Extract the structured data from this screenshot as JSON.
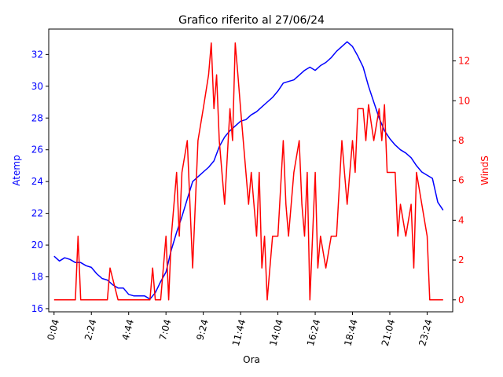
{
  "chart_data": {
    "type": "line",
    "title": "Grafico riferito al 27/06/24",
    "xlabel": "Ora",
    "ylabel_left": "Atemp",
    "ylabel_right": "WindS",
    "x_ticks": [
      "0:04",
      "2:24",
      "4:44",
      "7:04",
      "9:24",
      "11:44",
      "14:04",
      "16:24",
      "18:44",
      "21:04",
      "23:24"
    ],
    "x_range_minutes": [
      -16,
      1500
    ],
    "y_left_ticks": [
      16,
      18,
      20,
      22,
      24,
      26,
      28,
      30,
      32
    ],
    "y_left_range": [
      15.8,
      33.6
    ],
    "y_right_ticks": [
      0,
      2,
      4,
      6,
      8,
      10,
      12
    ],
    "y_right_range": [
      -0.6,
      13.6
    ],
    "grid": false,
    "colors": {
      "atemp": "#0000ff",
      "winds": "#ff0000",
      "left_axis": "#0000ff",
      "right_axis": "#ff0000"
    },
    "series": [
      {
        "name": "Atemp",
        "axis": "left",
        "x": [
          "0:04",
          "0:24",
          "0:44",
          "1:04",
          "1:24",
          "1:44",
          "2:04",
          "2:24",
          "2:44",
          "3:04",
          "3:24",
          "3:44",
          "4:04",
          "4:24",
          "4:44",
          "5:04",
          "5:24",
          "5:44",
          "6:04",
          "6:24",
          "6:44",
          "7:04",
          "7:24",
          "7:44",
          "8:04",
          "8:24",
          "8:44",
          "9:04",
          "9:24",
          "9:44",
          "10:04",
          "10:24",
          "10:44",
          "11:04",
          "11:24",
          "11:44",
          "12:04",
          "12:24",
          "12:44",
          "13:04",
          "13:24",
          "13:44",
          "14:04",
          "14:24",
          "14:44",
          "15:04",
          "15:24",
          "15:44",
          "16:04",
          "16:24",
          "16:44",
          "17:04",
          "17:24",
          "17:44",
          "18:04",
          "18:24",
          "18:44",
          "19:04",
          "19:24",
          "19:44",
          "20:04",
          "20:24",
          "20:44",
          "21:04",
          "21:24",
          "21:44",
          "22:04",
          "22:24",
          "22:44",
          "23:04",
          "23:24",
          "23:44",
          "24:04",
          "24:24"
        ],
        "values": [
          19.3,
          19.0,
          19.2,
          19.1,
          18.9,
          18.9,
          18.7,
          18.6,
          18.2,
          17.9,
          17.8,
          17.5,
          17.3,
          17.3,
          16.9,
          16.8,
          16.8,
          16.8,
          16.6,
          17.0,
          17.7,
          18.3,
          19.7,
          20.8,
          21.8,
          22.9,
          24.0,
          24.3,
          24.6,
          24.9,
          25.3,
          26.2,
          26.8,
          27.2,
          27.5,
          27.8,
          27.9,
          28.2,
          28.4,
          28.7,
          29.0,
          29.3,
          29.7,
          30.2,
          30.3,
          30.4,
          30.7,
          31.0,
          31.2,
          31.0,
          31.3,
          31.5,
          31.8,
          32.2,
          32.5,
          32.8,
          32.5,
          31.9,
          31.2,
          30.0,
          29.0,
          28.0,
          27.2,
          26.7,
          26.3,
          26.0,
          25.8,
          25.5,
          25.0,
          24.6,
          24.4,
          24.2,
          22.7,
          22.2
        ]
      },
      {
        "name": "WindS",
        "axis": "right",
        "x": [
          "0:04",
          "0:44",
          "1:24",
          "1:34",
          "1:44",
          "2:24",
          "3:04",
          "3:24",
          "3:34",
          "4:04",
          "4:44",
          "5:24",
          "6:04",
          "6:14",
          "6:24",
          "6:44",
          "7:04",
          "7:14",
          "7:24",
          "7:44",
          "7:54",
          "8:04",
          "8:24",
          "8:44",
          "9:04",
          "9:24",
          "9:44",
          "9:54",
          "10:04",
          "10:14",
          "10:24",
          "10:34",
          "10:44",
          "11:04",
          "11:14",
          "11:24",
          "11:34",
          "11:44",
          "11:54",
          "12:04",
          "12:14",
          "12:24",
          "12:34",
          "12:44",
          "12:54",
          "13:04",
          "13:14",
          "13:24",
          "13:44",
          "14:04",
          "14:24",
          "14:34",
          "14:44",
          "14:54",
          "15:04",
          "15:24",
          "15:34",
          "15:44",
          "15:54",
          "16:04",
          "16:24",
          "16:34",
          "16:44",
          "17:04",
          "17:24",
          "17:44",
          "18:04",
          "18:14",
          "18:24",
          "18:44",
          "18:54",
          "19:04",
          "19:24",
          "19:34",
          "19:44",
          "20:04",
          "20:24",
          "20:34",
          "20:44",
          "20:54",
          "21:04",
          "21:24",
          "21:34",
          "21:44",
          "22:04",
          "22:24",
          "22:34",
          "22:44",
          "23:04",
          "23:24",
          "23:34",
          "23:44",
          "24:04",
          "24:24"
        ],
        "values": [
          0,
          0,
          0,
          3.2,
          0,
          0,
          0,
          0,
          1.6,
          0,
          0,
          0,
          0,
          1.6,
          0,
          0,
          3.2,
          0,
          3.2,
          6.4,
          3.2,
          6.4,
          8,
          1.6,
          8,
          9.6,
          11.3,
          12.9,
          9.6,
          11.3,
          8,
          6.4,
          4.8,
          9.6,
          8,
          12.9,
          11.3,
          9.6,
          8,
          6.4,
          4.8,
          6.4,
          4.8,
          3.2,
          6.4,
          1.6,
          3.2,
          0,
          3.2,
          3.2,
          8,
          4.8,
          3.2,
          4.8,
          6.4,
          8,
          4.8,
          3.2,
          6.4,
          0,
          6.4,
          1.6,
          3.2,
          1.6,
          3.2,
          3.2,
          8,
          6.4,
          4.8,
          8,
          6.4,
          9.6,
          9.6,
          8,
          9.8,
          8,
          9.6,
          8,
          9.8,
          6.4,
          6.4,
          6.4,
          3.2,
          4.8,
          3.2,
          4.8,
          1.6,
          6.4,
          4.8,
          3.2,
          0,
          0,
          0,
          0
        ]
      }
    ]
  }
}
